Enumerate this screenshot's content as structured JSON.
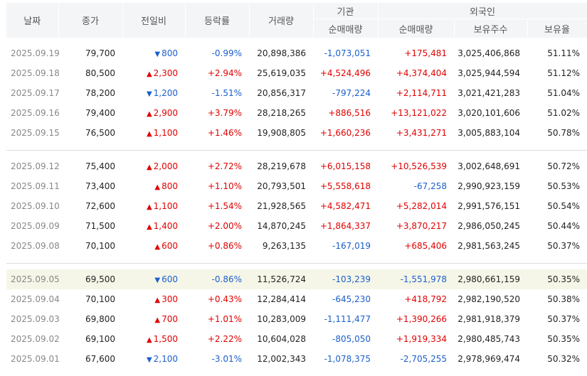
{
  "headers": {
    "date": "날짜",
    "close": "종가",
    "change": "전일비",
    "rate": "등락률",
    "volume": "거래량",
    "inst_group": "기관",
    "inst_net": "순매매량",
    "foreign_group": "외국인",
    "foreign_net": "순매매량",
    "foreign_hold": "보유주수",
    "foreign_ratio": "보유율"
  },
  "icons": {
    "up": "▲",
    "down": "▼"
  },
  "colors": {
    "up": "#e00000",
    "down": "#1a5fcc",
    "highlight_row": "#f6f6e8",
    "header_bg": "#f4f5f7"
  },
  "groups": [
    {
      "rows": [
        {
          "date": "2025.09.19",
          "close": "79,700",
          "dir": "down",
          "change": "800",
          "rate": "-0.99%",
          "volume": "20,898,386",
          "inst": "-1,073,051",
          "foreign": "+175,481",
          "hold": "3,025,406,868",
          "ratio": "51.11%"
        },
        {
          "date": "2025.09.18",
          "close": "80,500",
          "dir": "up",
          "change": "2,300",
          "rate": "+2.94%",
          "volume": "25,619,035",
          "inst": "+4,524,496",
          "foreign": "+4,374,404",
          "hold": "3,025,944,594",
          "ratio": "51.12%"
        },
        {
          "date": "2025.09.17",
          "close": "78,200",
          "dir": "down",
          "change": "1,200",
          "rate": "-1.51%",
          "volume": "20,856,317",
          "inst": "-797,224",
          "foreign": "+2,114,711",
          "hold": "3,021,421,283",
          "ratio": "51.04%"
        },
        {
          "date": "2025.09.16",
          "close": "79,400",
          "dir": "up",
          "change": "2,900",
          "rate": "+3.79%",
          "volume": "28,218,265",
          "inst": "+886,516",
          "foreign": "+13,121,022",
          "hold": "3,020,101,606",
          "ratio": "51.02%"
        },
        {
          "date": "2025.09.15",
          "close": "76,500",
          "dir": "up",
          "change": "1,100",
          "rate": "+1.46%",
          "volume": "19,908,805",
          "inst": "+1,660,236",
          "foreign": "+3,431,271",
          "hold": "3,005,883,104",
          "ratio": "50.78%"
        }
      ]
    },
    {
      "rows": [
        {
          "date": "2025.09.12",
          "close": "75,400",
          "dir": "up",
          "change": "2,000",
          "rate": "+2.72%",
          "volume": "28,219,678",
          "inst": "+6,015,158",
          "foreign": "+10,526,539",
          "hold": "3,002,648,691",
          "ratio": "50.72%"
        },
        {
          "date": "2025.09.11",
          "close": "73,400",
          "dir": "up",
          "change": "800",
          "rate": "+1.10%",
          "volume": "20,793,501",
          "inst": "+5,558,618",
          "foreign": "-67,258",
          "hold": "2,990,923,159",
          "ratio": "50.53%"
        },
        {
          "date": "2025.09.10",
          "close": "72,600",
          "dir": "up",
          "change": "1,100",
          "rate": "+1.54%",
          "volume": "21,928,565",
          "inst": "+4,582,471",
          "foreign": "+5,282,014",
          "hold": "2,991,576,151",
          "ratio": "50.54%"
        },
        {
          "date": "2025.09.09",
          "close": "71,500",
          "dir": "up",
          "change": "1,400",
          "rate": "+2.00%",
          "volume": "14,870,245",
          "inst": "+1,864,337",
          "foreign": "+3,870,217",
          "hold": "2,986,050,245",
          "ratio": "50.44%"
        },
        {
          "date": "2025.09.08",
          "close": "70,100",
          "dir": "up",
          "change": "600",
          "rate": "+0.86%",
          "volume": "9,263,135",
          "inst": "-167,019",
          "foreign": "+685,406",
          "hold": "2,981,563,245",
          "ratio": "50.37%"
        }
      ]
    },
    {
      "rows": [
        {
          "date": "2025.09.05",
          "close": "69,500",
          "dir": "down",
          "change": "600",
          "rate": "-0.86%",
          "volume": "11,526,724",
          "inst": "-103,239",
          "foreign": "-1,551,978",
          "hold": "2,980,661,159",
          "ratio": "50.35%",
          "highlight": true
        },
        {
          "date": "2025.09.04",
          "close": "70,100",
          "dir": "up",
          "change": "300",
          "rate": "+0.43%",
          "volume": "12,284,414",
          "inst": "-645,230",
          "foreign": "+418,792",
          "hold": "2,982,190,520",
          "ratio": "50.38%"
        },
        {
          "date": "2025.09.03",
          "close": "69,800",
          "dir": "up",
          "change": "700",
          "rate": "+1.01%",
          "volume": "10,283,009",
          "inst": "-1,111,477",
          "foreign": "+1,390,266",
          "hold": "2,981,918,379",
          "ratio": "50.37%"
        },
        {
          "date": "2025.09.02",
          "close": "69,100",
          "dir": "up",
          "change": "1,500",
          "rate": "+2.22%",
          "volume": "10,604,028",
          "inst": "-805,050",
          "foreign": "+1,919,334",
          "hold": "2,980,485,743",
          "ratio": "50.35%"
        },
        {
          "date": "2025.09.01",
          "close": "67,600",
          "dir": "down",
          "change": "2,100",
          "rate": "-3.01%",
          "volume": "12,002,343",
          "inst": "-1,078,375",
          "foreign": "-2,705,255",
          "hold": "2,978,969,474",
          "ratio": "50.32%"
        }
      ]
    }
  ]
}
